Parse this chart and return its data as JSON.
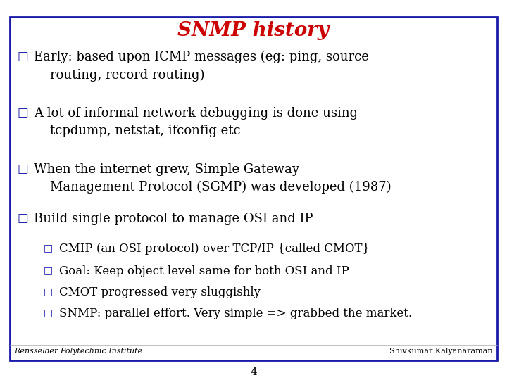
{
  "title": "SNMP history",
  "title_color": "#cc0000",
  "title_fontsize": 20,
  "background_color": "#ffffff",
  "border_color": "#1a1aaa",
  "text_color": "#000000",
  "bullet_color": "#1a1aaa",
  "main_bullets": [
    "Early: based upon ICMP messages (eg: ping, source\n    routing, record routing)",
    "A lot of informal network debugging is done using\n    tcpdump, netstat, ifconfig etc",
    "When the internet grew, Simple Gateway\n    Management Protocol (SGMP) was developed (1987)",
    "Build single protocol to manage OSI and IP"
  ],
  "sub_bullets": [
    "CMIP (an OSI protocol) over TCP/IP {called CMOT}",
    "Goal: Keep object level same for both OSI and IP",
    "CMOT progressed very sluggishly",
    "SNMP: parallel effort. Very simple => grabbed the market."
  ],
  "footer_left": "Rensselaer Polytechnic Institute",
  "footer_right": "Shivkumar Kalyanaraman",
  "page_number": "4",
  "main_fontsize": 13,
  "sub_fontsize": 12,
  "footer_fontsize": 8
}
